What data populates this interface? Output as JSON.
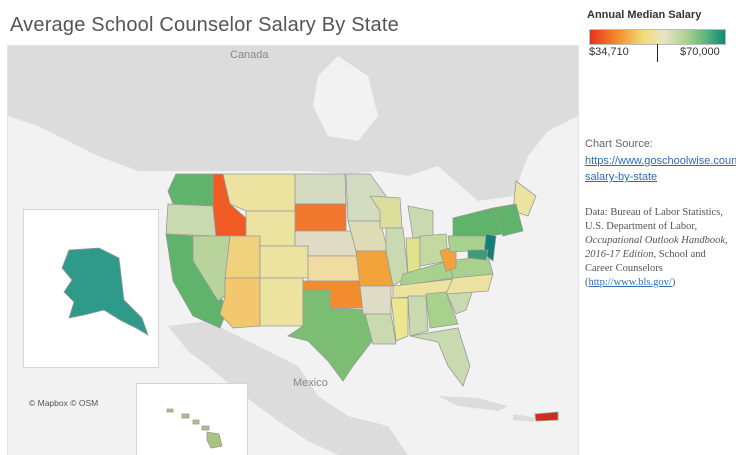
{
  "title": "Average School Counselor Salary By State",
  "legend": {
    "title": "Annual Median Salary",
    "min_label": "$34,710",
    "max_label": "$70,000",
    "colors": {
      "low": "#e8321e",
      "mid_low": "#f28c28",
      "mid": "#e6e4c4",
      "mid_high": "#5cb37c",
      "high": "#0f8a74"
    }
  },
  "source": {
    "label": "Chart Source:",
    "link_text": "https://www.goschoolwise.counselor-salary-by-state"
  },
  "data_note": {
    "text_1": "Data: Bureau of Labor Statistics, U.S. Department of Labor, ",
    "italic": "Occupational Outlook Handbook, 2016-17 Edition",
    "text_2": ", School and Career Counselors (",
    "link_text": "http://www.bls.gov/",
    "text_3": ")"
  },
  "map_labels": {
    "canada": "Canada",
    "mexico": "Mexico",
    "attribution": "© Mapbox  © OSM"
  },
  "states": [
    {
      "name": "Washington",
      "color": "#5fb36a"
    },
    {
      "name": "Oregon",
      "color": "#c9d9b0"
    },
    {
      "name": "Idaho",
      "color": "#f05a23"
    },
    {
      "name": "Montana",
      "color": "#ece3a0"
    },
    {
      "name": "North Dakota",
      "color": "#d3dcc0"
    },
    {
      "name": "South Dakota",
      "color": "#f2772e"
    },
    {
      "name": "California",
      "color": "#5fb36a"
    },
    {
      "name": "Nevada",
      "color": "#b8d39b"
    },
    {
      "name": "Utah",
      "color": "#f0d27c"
    },
    {
      "name": "Arizona",
      "color": "#f2c76e"
    },
    {
      "name": "Colorado",
      "color": "#ece3a0"
    },
    {
      "name": "Wyoming",
      "color": "#ece3a0"
    },
    {
      "name": "Nebraska",
      "color": "#dedcc4"
    },
    {
      "name": "Kansas",
      "color": "#f0dca0"
    },
    {
      "name": "Oklahoma",
      "color": "#f28c2e"
    },
    {
      "name": "Texas",
      "color": "#7cbd74"
    },
    {
      "name": "New Mexico",
      "color": "#ece3a0"
    },
    {
      "name": "Minnesota",
      "color": "#d3dcc0"
    },
    {
      "name": "Iowa",
      "color": "#dedcb4"
    },
    {
      "name": "Missouri",
      "color": "#f2a33a"
    },
    {
      "name": "Arkansas",
      "color": "#dedcc4"
    },
    {
      "name": "Louisiana",
      "color": "#c9d9b0"
    },
    {
      "name": "Wisconsin",
      "color": "#dcdf9c"
    },
    {
      "name": "Illinois",
      "color": "#c9d9b0"
    },
    {
      "name": "Michigan",
      "color": "#c9d9b0"
    },
    {
      "name": "Indiana",
      "color": "#dfe38a"
    },
    {
      "name": "Ohio",
      "color": "#c3d9a0"
    },
    {
      "name": "Kentucky",
      "color": "#a9d18e"
    },
    {
      "name": "Tennessee",
      "color": "#ece3a0"
    },
    {
      "name": "Mississippi",
      "color": "#ece68e"
    },
    {
      "name": "Alabama",
      "color": "#c9d9b0"
    },
    {
      "name": "Georgia",
      "color": "#a9d18e"
    },
    {
      "name": "Florida",
      "color": "#c9d9b0"
    },
    {
      "name": "South Carolina",
      "color": "#c9d9b0"
    },
    {
      "name": "North Carolina",
      "color": "#ece3a0"
    },
    {
      "name": "Virginia",
      "color": "#a9d18e"
    },
    {
      "name": "West Virginia",
      "color": "#f2a33a"
    },
    {
      "name": "Pennsylvania",
      "color": "#a9d18e"
    },
    {
      "name": "New York",
      "color": "#5fb36a"
    },
    {
      "name": "Maine",
      "color": "#ece3a0"
    },
    {
      "name": "New England",
      "color": "#5fb36a"
    },
    {
      "name": "New Jersey",
      "color": "#137f7a"
    },
    {
      "name": "Maryland",
      "color": "#3f9a76"
    },
    {
      "name": "Alaska",
      "color": "#2f9a8a"
    },
    {
      "name": "Hawaii",
      "color": "#a9c47c"
    },
    {
      "name": "Puerto Rico",
      "color": "#d42a1e"
    }
  ]
}
